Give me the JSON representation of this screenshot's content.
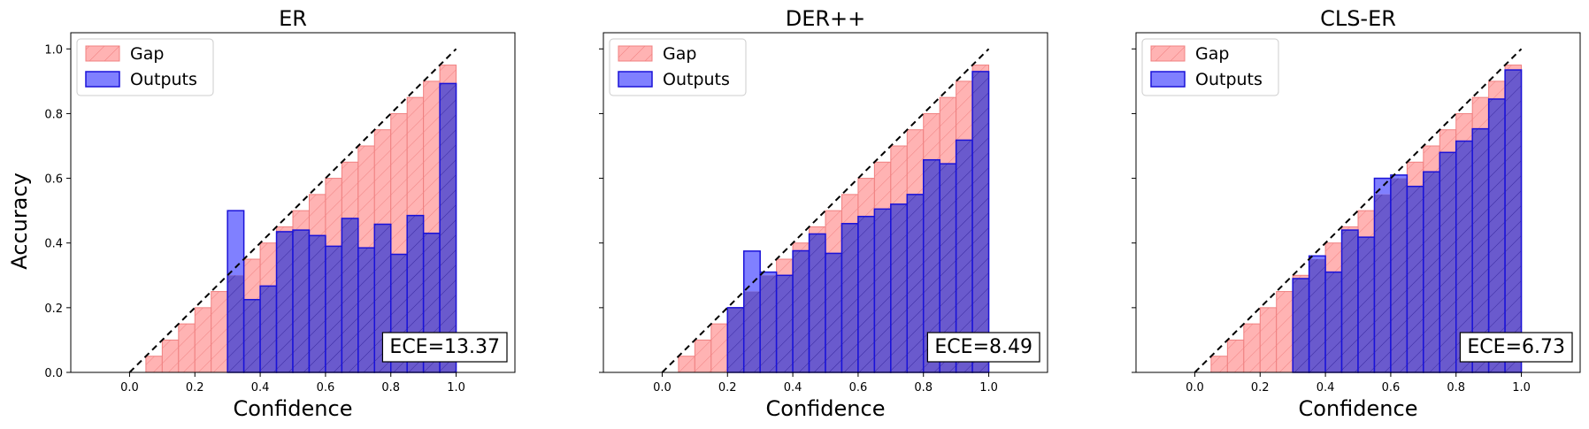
{
  "ylabel": "Accuracy",
  "legend": {
    "gap": "Gap",
    "outputs": "Outputs"
  },
  "colors": {
    "gap_fill": "#ffb3b3",
    "gap_edge": "#f08080",
    "outputs_fill": "#6a5acd",
    "outputs_edge": "#1a12d8",
    "outputs_legend": "#8080ff"
  },
  "chart_data": [
    {
      "type": "bar",
      "title": "ER",
      "xlabel": "Confidence",
      "ece_label": "ECE=13.37",
      "x": [
        0.05,
        0.1,
        0.15,
        0.2,
        0.25,
        0.3,
        0.35,
        0.4,
        0.45,
        0.5,
        0.55,
        0.6,
        0.65,
        0.7,
        0.75,
        0.8,
        0.85,
        0.9,
        0.95
      ],
      "gap_top": [
        0.05,
        0.1,
        0.15,
        0.2,
        0.25,
        0.3,
        0.35,
        0.4,
        0.45,
        0.5,
        0.55,
        0.6,
        0.65,
        0.7,
        0.75,
        0.8,
        0.85,
        0.9,
        0.95
      ],
      "outputs": [
        0,
        0,
        0,
        0,
        0,
        0.5,
        0.225,
        0.267,
        0.435,
        0.44,
        0.423,
        0.39,
        0.476,
        0.385,
        0.458,
        0.365,
        0.485,
        0.43,
        0.893
      ],
      "xlim": [
        -0.18,
        1.18
      ],
      "ylim": [
        0,
        1.05
      ],
      "xticks": [
        "0.0",
        "0.2",
        "0.4",
        "0.6",
        "0.8",
        "1.0"
      ],
      "yticks": [
        "0.0",
        "0.2",
        "0.4",
        "0.6",
        "0.8",
        "1.0"
      ]
    },
    {
      "type": "bar",
      "title": "DER++",
      "xlabel": "Confidence",
      "ece_label": "ECE=8.49",
      "x": [
        0.05,
        0.1,
        0.15,
        0.2,
        0.25,
        0.3,
        0.35,
        0.4,
        0.45,
        0.5,
        0.55,
        0.6,
        0.65,
        0.7,
        0.75,
        0.8,
        0.85,
        0.9,
        0.95
      ],
      "gap_top": [
        0.05,
        0.1,
        0.15,
        0.2,
        0.25,
        0.3,
        0.35,
        0.4,
        0.45,
        0.5,
        0.55,
        0.6,
        0.65,
        0.7,
        0.75,
        0.8,
        0.85,
        0.9,
        0.95
      ],
      "outputs": [
        0,
        0,
        0,
        0.2,
        0.375,
        0.31,
        0.3,
        0.376,
        0.428,
        0.368,
        0.46,
        0.482,
        0.505,
        0.52,
        0.55,
        0.657,
        0.645,
        0.718,
        0.93
      ],
      "xlim": [
        -0.18,
        1.18
      ],
      "ylim": [
        0,
        1.05
      ],
      "xticks": [
        "0.0",
        "0.2",
        "0.4",
        "0.6",
        "0.8",
        "1.0"
      ],
      "yticks": [
        "",
        "",
        "",
        "",
        "",
        ""
      ]
    },
    {
      "type": "bar",
      "title": "CLS-ER",
      "xlabel": "Confidence",
      "ece_label": "ECE=6.73",
      "x": [
        0.05,
        0.1,
        0.15,
        0.2,
        0.25,
        0.3,
        0.35,
        0.4,
        0.45,
        0.5,
        0.55,
        0.6,
        0.65,
        0.7,
        0.75,
        0.8,
        0.85,
        0.9,
        0.95
      ],
      "gap_top": [
        0.05,
        0.1,
        0.15,
        0.2,
        0.25,
        0.3,
        0.35,
        0.4,
        0.45,
        0.5,
        0.55,
        0.6,
        0.65,
        0.7,
        0.75,
        0.8,
        0.85,
        0.9,
        0.95
      ],
      "outputs": [
        0,
        0,
        0,
        0,
        0,
        0.29,
        0.36,
        0.31,
        0.44,
        0.418,
        0.6,
        0.61,
        0.575,
        0.62,
        0.68,
        0.715,
        0.753,
        0.845,
        0.935
      ],
      "xlim": [
        -0.18,
        1.18
      ],
      "ylim": [
        0,
        1.05
      ],
      "xticks": [
        "0.0",
        "0.2",
        "0.4",
        "0.6",
        "0.8",
        "1.0"
      ],
      "yticks": [
        "",
        "",
        "",
        "",
        "",
        ""
      ]
    }
  ]
}
